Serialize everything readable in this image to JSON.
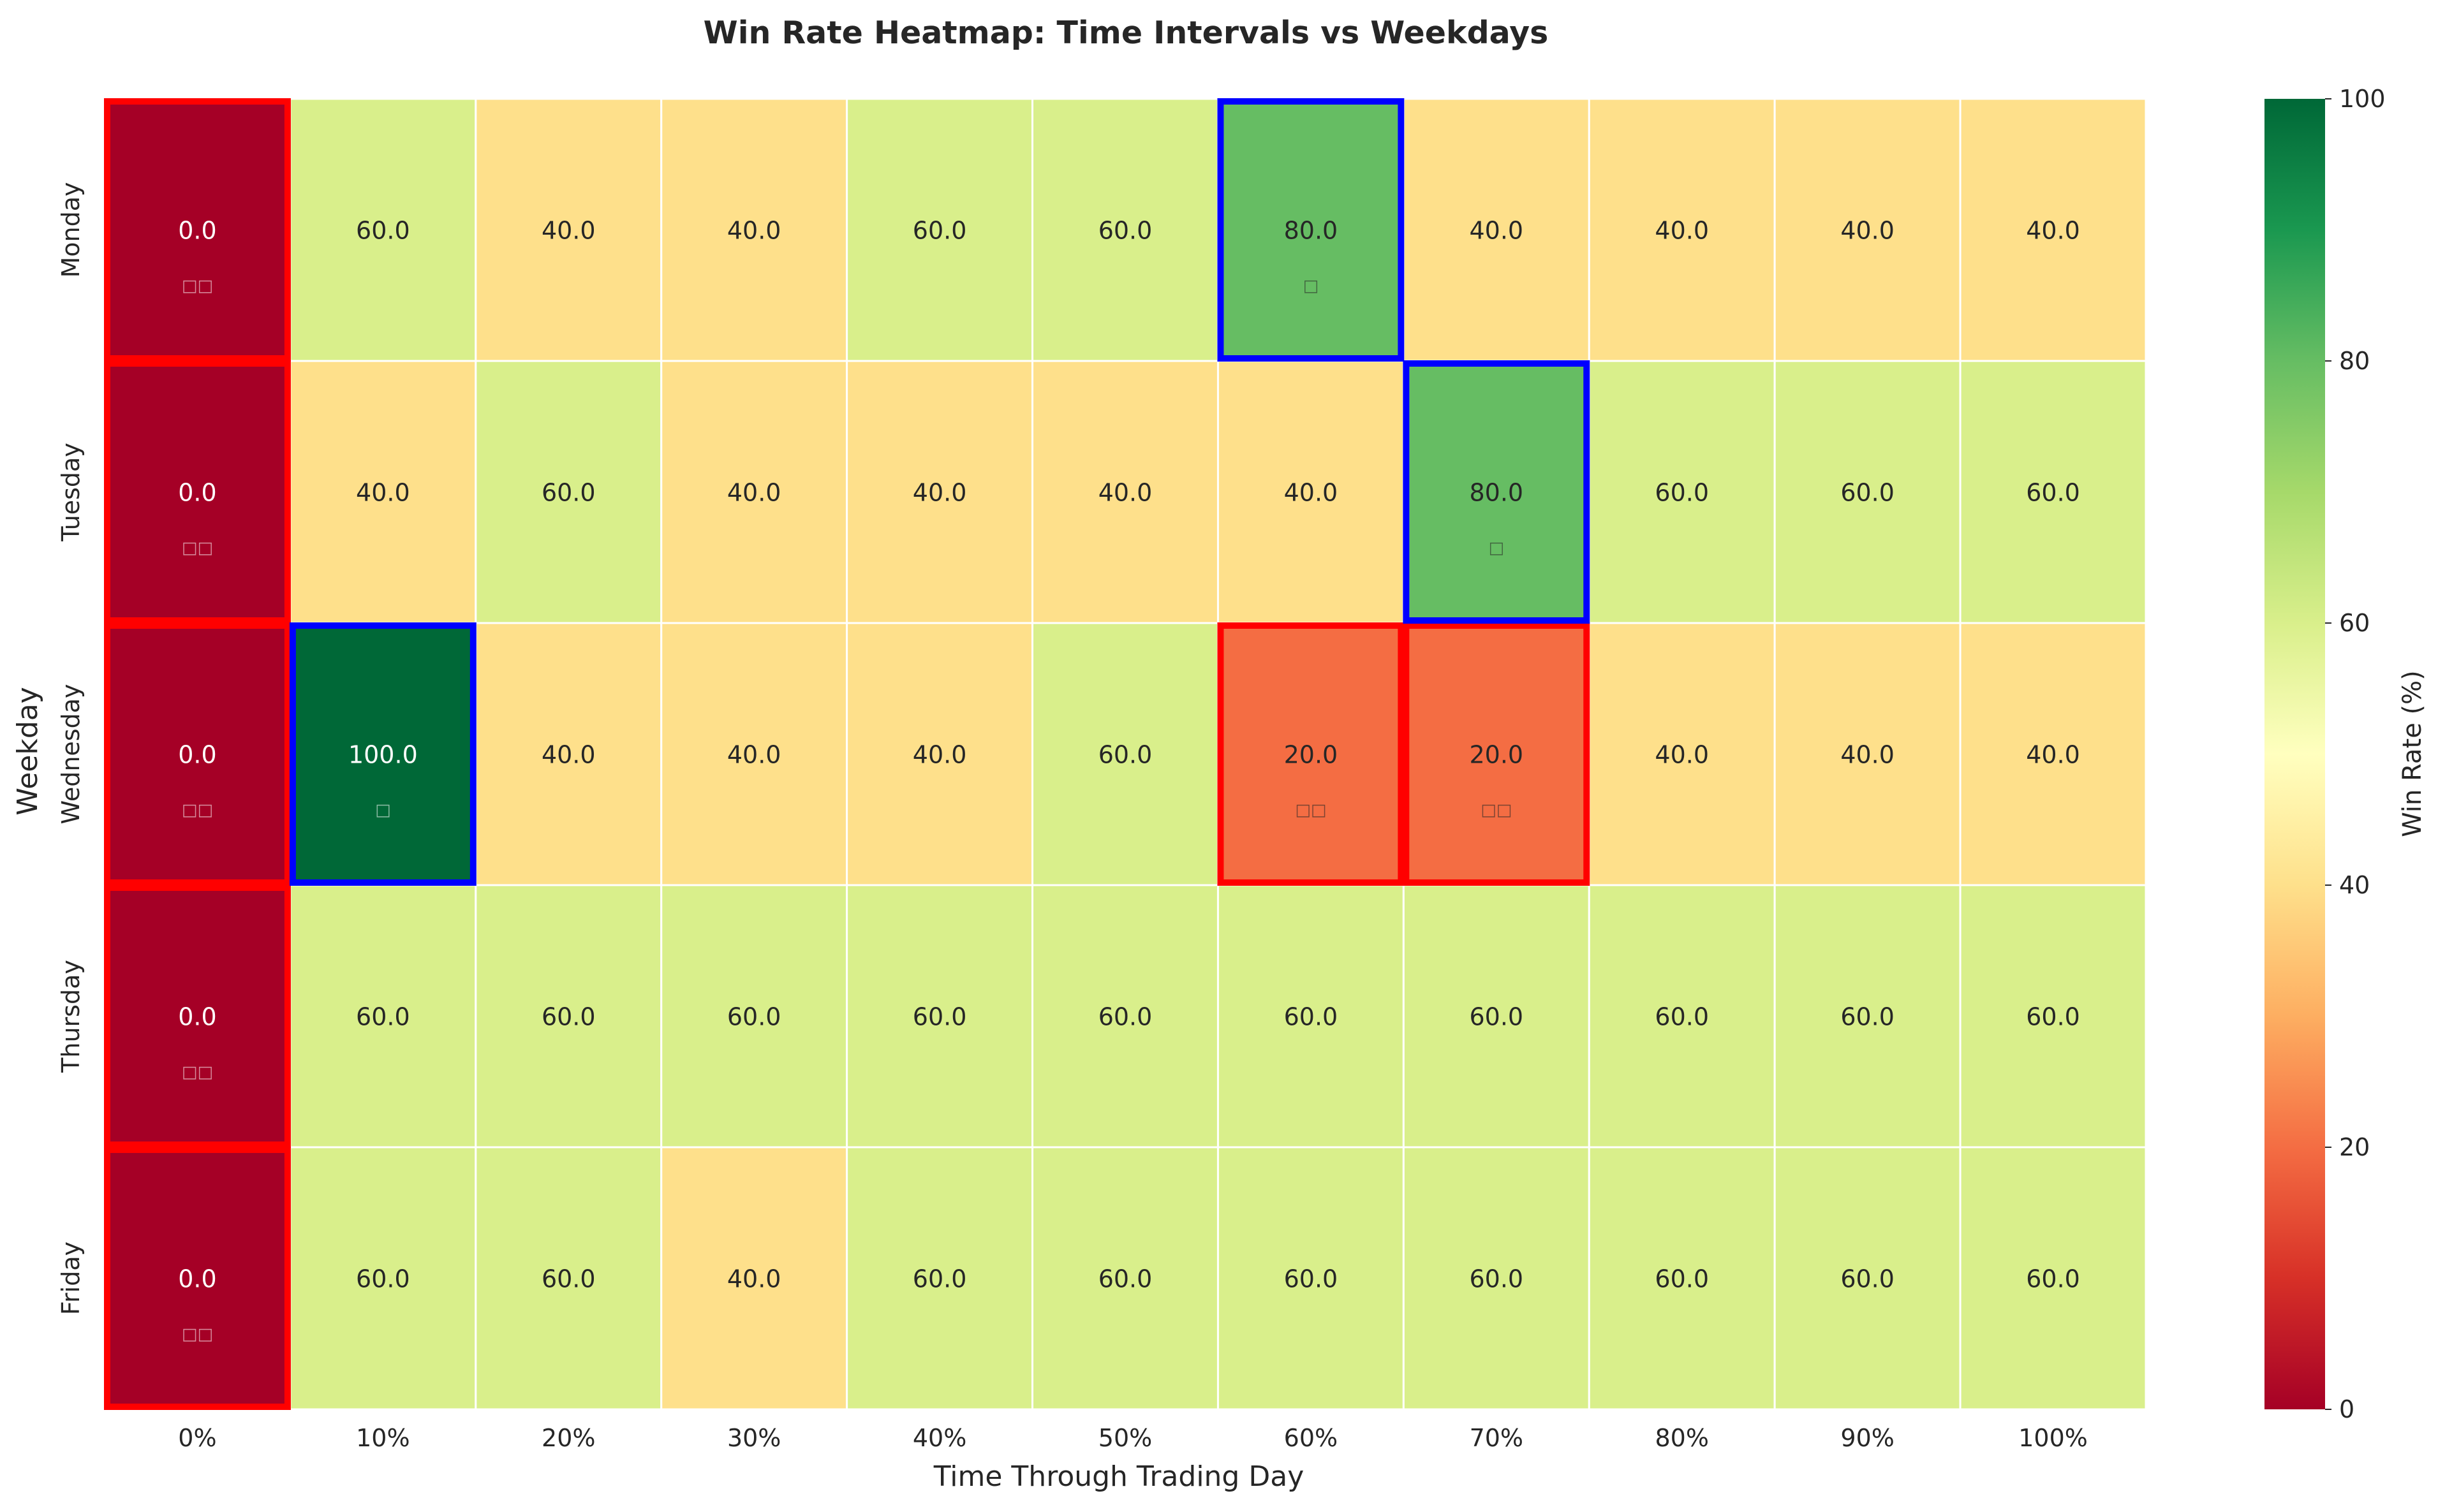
{
  "chart_data": {
    "type": "heatmap",
    "title": "Win Rate Heatmap: Time Intervals vs Weekdays",
    "xlabel": "Time Through Trading Day",
    "ylabel": "Weekday",
    "x_categories": [
      "0%",
      "10%",
      "20%",
      "30%",
      "40%",
      "50%",
      "60%",
      "70%",
      "80%",
      "90%",
      "100%"
    ],
    "y_categories": [
      "Monday",
      "Tuesday",
      "Wednesday",
      "Thursday",
      "Friday"
    ],
    "values": [
      [
        0.0,
        60.0,
        40.0,
        40.0,
        60.0,
        60.0,
        80.0,
        40.0,
        40.0,
        40.0,
        40.0
      ],
      [
        0.0,
        40.0,
        60.0,
        40.0,
        40.0,
        40.0,
        40.0,
        80.0,
        60.0,
        60.0,
        60.0
      ],
      [
        0.0,
        100.0,
        40.0,
        40.0,
        40.0,
        60.0,
        20.0,
        20.0,
        40.0,
        40.0,
        40.0
      ],
      [
        0.0,
        60.0,
        60.0,
        60.0,
        60.0,
        60.0,
        60.0,
        60.0,
        60.0,
        60.0,
        60.0
      ],
      [
        0.0,
        60.0,
        60.0,
        40.0,
        60.0,
        60.0,
        60.0,
        60.0,
        60.0,
        60.0,
        60.0
      ]
    ],
    "value_format_decimals": 1,
    "colormap": "RdYlGn",
    "colormap_stops": [
      "#a50026",
      "#d73027",
      "#f46d43",
      "#fdae61",
      "#fee08b",
      "#ffffbf",
      "#d9ef8b",
      "#a6d96a",
      "#66bd63",
      "#1a9850",
      "#006837"
    ],
    "vmin": 0,
    "vmax": 100,
    "colorbar": {
      "label": "Win Rate (%)",
      "ticks": [
        0,
        20,
        40,
        60,
        80,
        100
      ]
    },
    "highlights": [
      {
        "row": 0,
        "col": 0,
        "kind": "low",
        "color": "#ff0000"
      },
      {
        "row": 1,
        "col": 0,
        "kind": "low",
        "color": "#ff0000"
      },
      {
        "row": 2,
        "col": 0,
        "kind": "low",
        "color": "#ff0000"
      },
      {
        "row": 3,
        "col": 0,
        "kind": "low",
        "color": "#ff0000"
      },
      {
        "row": 4,
        "col": 0,
        "kind": "low",
        "color": "#ff0000"
      },
      {
        "row": 2,
        "col": 6,
        "kind": "low",
        "color": "#ff0000"
      },
      {
        "row": 2,
        "col": 7,
        "kind": "low",
        "color": "#ff0000"
      },
      {
        "row": 0,
        "col": 6,
        "kind": "high",
        "color": "#0000ff"
      },
      {
        "row": 1,
        "col": 7,
        "kind": "high",
        "color": "#0000ff"
      },
      {
        "row": 2,
        "col": 1,
        "kind": "high",
        "color": "#0000ff"
      }
    ],
    "markers": [
      {
        "row": 0,
        "col": 0,
        "glyph": "□□",
        "kind": "low"
      },
      {
        "row": 1,
        "col": 0,
        "glyph": "□□",
        "kind": "low"
      },
      {
        "row": 2,
        "col": 0,
        "glyph": "□□",
        "kind": "low"
      },
      {
        "row": 3,
        "col": 0,
        "glyph": "□□",
        "kind": "low"
      },
      {
        "row": 4,
        "col": 0,
        "glyph": "□□",
        "kind": "low"
      },
      {
        "row": 2,
        "col": 6,
        "glyph": "□□",
        "kind": "low"
      },
      {
        "row": 2,
        "col": 7,
        "glyph": "□□",
        "kind": "low"
      },
      {
        "row": 0,
        "col": 6,
        "glyph": "□",
        "kind": "high"
      },
      {
        "row": 1,
        "col": 7,
        "glyph": "□",
        "kind": "high"
      },
      {
        "row": 2,
        "col": 1,
        "glyph": "□",
        "kind": "high"
      }
    ],
    "grid": false,
    "cell_divider_color": "#ffffff"
  }
}
